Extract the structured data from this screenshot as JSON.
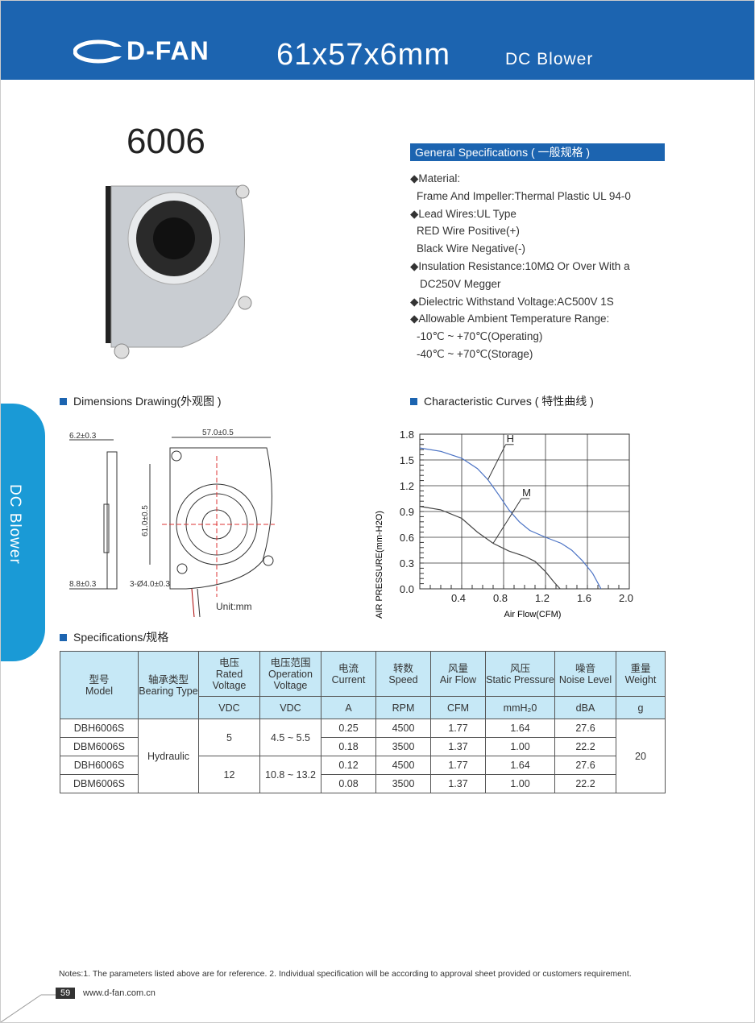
{
  "header": {
    "logo": "D-FAN",
    "title": "61x57x6mm",
    "subtitle": "DC Blower",
    "color": "#1c64b0"
  },
  "product": {
    "model": "6006"
  },
  "general_specs": {
    "heading": "General Specifications ( 一般规格 )",
    "lines": [
      "◆Material:",
      "  Frame And Impeller:Thermal Plastic UL 94-0",
      "◆Lead Wires:UL Type",
      "  RED Wire Positive(+)",
      "  Black Wire Negative(-)",
      "◆Insulation Resistance:10MΩ  Or Over With a",
      "   DC250V Megger",
      "◆Dielectric Withstand Voltage:AC500V 1S",
      "◆Allowable Ambient Temperature Range:",
      "  -10℃ ~ +70℃(Operating)",
      "  -40℃ ~ +70℃(Storage)"
    ]
  },
  "sections": {
    "dimensions": "Dimensions Drawing(外观图 )",
    "curves": "Characteristic Curves ( 特性曲线 )",
    "specs": "Specifications/规格"
  },
  "side_tab": "DC Blower",
  "dimensions": {
    "thickness": "6.2±0.3",
    "width": "57.0±0.5",
    "height": "61.0±0.5",
    "base": "8.8±0.3",
    "holes": "3-Ø4.0±0.3",
    "unit": "Unit:mm"
  },
  "chart_data": {
    "type": "line",
    "xlabel": "Air Flow(CFM)",
    "ylabel": "AIR PRESSURE(mm-H2O)",
    "xlim": [
      0,
      2.0
    ],
    "ylim": [
      0,
      1.8
    ],
    "xticks": [
      "0.4",
      "0.8",
      "1.2",
      "1.6",
      "2.0"
    ],
    "yticks": [
      "0.0",
      "0.3",
      "0.6",
      "0.9",
      "1.2",
      "1.5",
      "1.8"
    ],
    "grid": true,
    "series": [
      {
        "name": "H",
        "color": "#4a72c4",
        "x": [
          0,
          0.2,
          0.4,
          0.55,
          0.65,
          0.75,
          0.85,
          0.95,
          1.05,
          1.2,
          1.35,
          1.45,
          1.55,
          1.65,
          1.73
        ],
        "y": [
          1.64,
          1.6,
          1.52,
          1.4,
          1.27,
          1.1,
          0.92,
          0.78,
          0.68,
          0.6,
          0.53,
          0.45,
          0.33,
          0.18,
          0
        ]
      },
      {
        "name": "M",
        "color": "#444444",
        "x": [
          0,
          0.2,
          0.4,
          0.55,
          0.7,
          0.85,
          1.0,
          1.1,
          1.2,
          1.28,
          1.34
        ],
        "y": [
          0.96,
          0.92,
          0.82,
          0.66,
          0.53,
          0.44,
          0.38,
          0.32,
          0.2,
          0.08,
          0
        ]
      }
    ]
  },
  "table": {
    "headers": [
      {
        "zh": "型号",
        "en": "Model"
      },
      {
        "zh": "轴承类型",
        "en": "Bearing Type"
      },
      {
        "zh": "电压",
        "en": "Rated Voltage",
        "unit": "VDC"
      },
      {
        "zh": "电压范围",
        "en": "Operation Voltage",
        "unit": "VDC"
      },
      {
        "zh": "电流",
        "en": "Current",
        "unit": "A"
      },
      {
        "zh": "转数",
        "en": "Speed",
        "unit": "RPM"
      },
      {
        "zh": "风量",
        "en": "Air Flow",
        "unit": "CFM"
      },
      {
        "zh": "风压",
        "en": "Static Pressure",
        "unit": "mmH₂0"
      },
      {
        "zh": "噪音",
        "en": "Noise Level",
        "unit": "dBA"
      },
      {
        "zh": "重量",
        "en": "Weight",
        "unit": "g"
      }
    ],
    "bearing": "Hydraulic",
    "weight": "20",
    "voltage_groups": [
      {
        "rated": "5",
        "range": "4.5 ~ 5.5"
      },
      {
        "rated": "12",
        "range": "10.8 ~ 13.2"
      }
    ],
    "rows": [
      [
        "DBH6006S",
        "0.25",
        "4500",
        "1.77",
        "1.64",
        "27.6"
      ],
      [
        "DBM6006S",
        "0.18",
        "3500",
        "1.37",
        "1.00",
        "22.2"
      ],
      [
        "DBH6006S",
        "0.12",
        "4500",
        "1.77",
        "1.64",
        "27.6"
      ],
      [
        "DBM6006S",
        "0.08",
        "3500",
        "1.37",
        "1.00",
        "22.2"
      ]
    ]
  },
  "footer": {
    "notes": "Notes:1. The parameters listed above are for reference.   2. Individual specification will be according to approval sheet provided or customers requirement.",
    "page": "59",
    "url": "www.d-fan.com.cn"
  }
}
